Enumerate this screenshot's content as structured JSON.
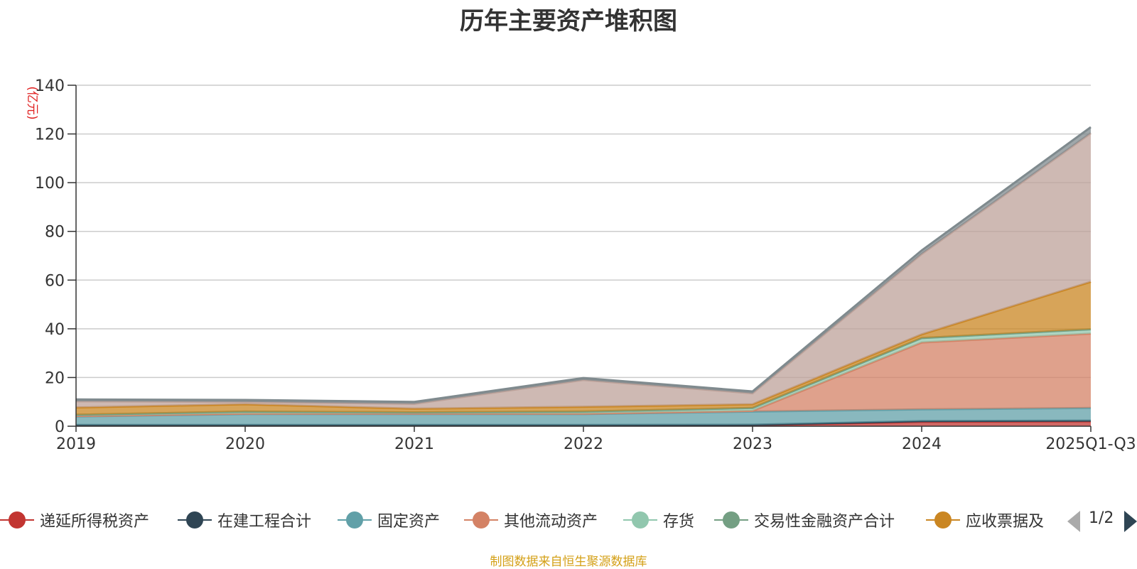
{
  "chart_data": {
    "type": "area",
    "stacked": true,
    "title": "历年主要资产堆积图",
    "unit_label": "(亿元)",
    "categories": [
      "2019",
      "2020",
      "2021",
      "2022",
      "2023",
      "2024",
      "2025Q1-Q3"
    ],
    "ylim": [
      0,
      140
    ],
    "yticks": [
      0,
      20,
      40,
      60,
      80,
      100,
      120,
      140
    ],
    "grid": true,
    "legend_position": "bottom",
    "series": [
      {
        "name": "递延所得税资产",
        "color": "#c23531",
        "values": [
          0.3,
          0.3,
          0.3,
          0.3,
          0.4,
          1.8,
          2.0
        ]
      },
      {
        "name": "在建工程合计",
        "color": "#2f4554",
        "values": [
          0.2,
          0.2,
          0.2,
          0.2,
          0.2,
          0.3,
          0.3
        ]
      },
      {
        "name": "固定资产",
        "color": "#61a0a8",
        "values": [
          3.5,
          4.5,
          4.5,
          4.5,
          5.4,
          4.8,
          5.2
        ]
      },
      {
        "name": "其他流动资产",
        "color": "#d48265",
        "values": [
          0.2,
          0.2,
          0.2,
          0.2,
          0.3,
          27.5,
          30.5
        ]
      },
      {
        "name": "存货",
        "color": "#91c7ae",
        "values": [
          0.5,
          0.8,
          0.5,
          0.8,
          1.2,
          1.8,
          1.8
        ]
      },
      {
        "name": "交易性金融资产合计",
        "color": "#749f83",
        "values": [
          0.0,
          0.0,
          0.0,
          0.0,
          0.0,
          0.0,
          0.0
        ]
      },
      {
        "name": "应收票据及",
        "color": "#ca8622",
        "values": [
          3.0,
          3.0,
          1.5,
          2.0,
          1.5,
          1.5,
          19.5
        ]
      },
      {
        "name": "",
        "color": "#bda29a",
        "values": [
          2.5,
          1.0,
          2.0,
          11.0,
          4.5,
          33.0,
          61.0
        ]
      },
      {
        "name": "",
        "color": "#7f8a8e",
        "values": [
          0.8,
          0.8,
          0.8,
          0.8,
          0.8,
          1.5,
          2.5
        ]
      }
    ]
  },
  "legend": {
    "pager": "1/2"
  },
  "footer": {
    "source": "制图数据来自恒生聚源数据库"
  }
}
